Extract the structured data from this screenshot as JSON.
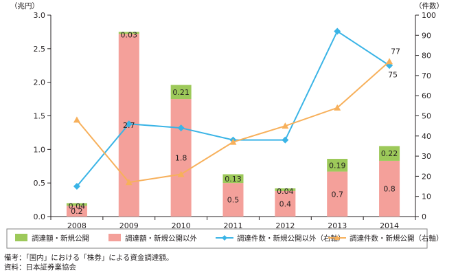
{
  "chart_data": {
    "type": "bar",
    "title": "",
    "categories": [
      "2008",
      "2009",
      "2010",
      "2011",
      "2012",
      "2013",
      "2014"
    ],
    "ylabel_left": "（兆円）",
    "ylabel_right": "（件数）",
    "ylim_left": [
      0,
      3.0
    ],
    "ylim_right": [
      0,
      100
    ],
    "yticks_left": [
      "0.0",
      "0.5",
      "1.0",
      "1.5",
      "2.0",
      "2.5",
      "3.0"
    ],
    "yticks_right": [
      "0",
      "10",
      "20",
      "30",
      "40",
      "50",
      "60",
      "70",
      "80",
      "90",
      "100"
    ],
    "stacked_bars": [
      {
        "name": "調達額・新規公開以外",
        "color": "#f4a09a",
        "values": [
          0.2,
          2.7,
          1.8,
          0.5,
          0.4,
          0.7,
          0.8
        ],
        "plot_values": [
          0.16,
          2.72,
          1.75,
          0.5,
          0.38,
          0.67,
          0.83
        ],
        "labels": [
          "0.2",
          "2.7",
          "1.8",
          "0.5",
          "0.4",
          "0.7",
          "0.8"
        ]
      },
      {
        "name": "調達額・新規公開",
        "color": "#9dc95a",
        "values": [
          0.04,
          0.03,
          0.21,
          0.13,
          0.04,
          0.19,
          0.22
        ],
        "labels": [
          "0.04",
          "0.03",
          "0.21",
          "0.13",
          "0.04",
          "0.19",
          "0.22"
        ]
      }
    ],
    "lines": [
      {
        "name": "調達件数・新規公開以外（右軸）",
        "color": "#3ab4e6",
        "marker": "diamond",
        "axis": "right",
        "values": [
          15,
          46,
          44,
          38,
          38,
          92,
          75
        ],
        "end_label": "75"
      },
      {
        "name": "調達件数・新規公開（右軸）",
        "color": "#f7b05b",
        "marker": "triangle",
        "axis": "right",
        "values": [
          48,
          17,
          21,
          37,
          45,
          54,
          77
        ],
        "end_label": "77"
      }
    ],
    "legend": {
      "position": "bottom",
      "items": [
        "調達額・新規公開",
        "調達額・新規公開以外",
        "調達件数・新規公開以外（右軸）",
        "調達件数・新規公開（右軸）"
      ]
    },
    "grid": false
  },
  "notes": {
    "note": "備考：「国内」における「株券」による資金調達額。",
    "source": "資料：日本証券業協会"
  }
}
